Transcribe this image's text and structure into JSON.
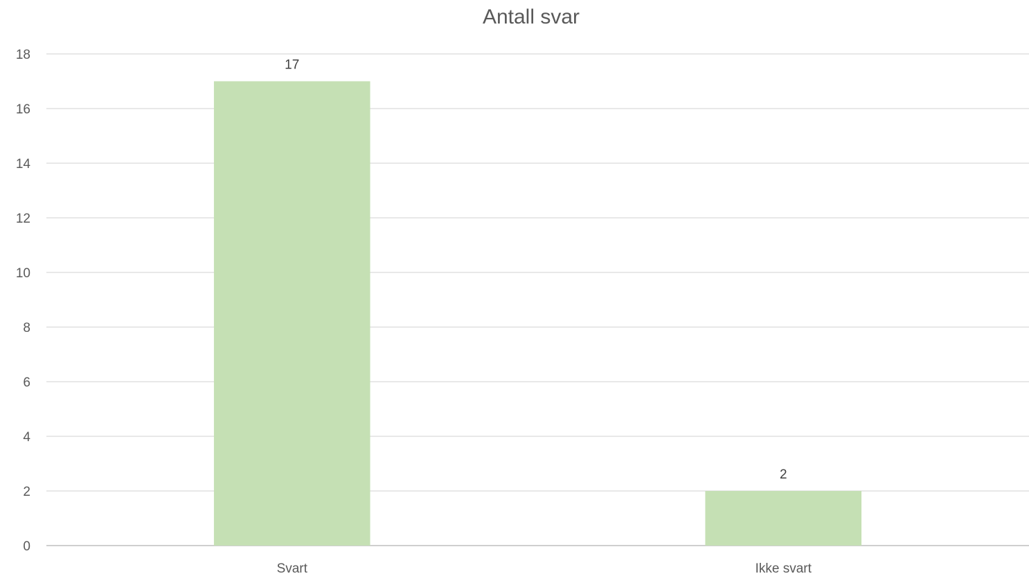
{
  "chart_data": {
    "type": "bar",
    "title": "Antall svar",
    "categories": [
      "Svart",
      "Ikke svart"
    ],
    "values": [
      17,
      2
    ],
    "data_labels": [
      "17",
      "2"
    ],
    "xlabel": "",
    "ylabel": "",
    "ylim": [
      0,
      18
    ],
    "yticks": [
      0,
      2,
      4,
      6,
      8,
      10,
      12,
      14,
      16,
      18
    ],
    "grid": true,
    "legend": "none",
    "colors": {
      "bar": "#c5e0b4",
      "grid": "#d9d9d9",
      "text": "#595959"
    }
  }
}
